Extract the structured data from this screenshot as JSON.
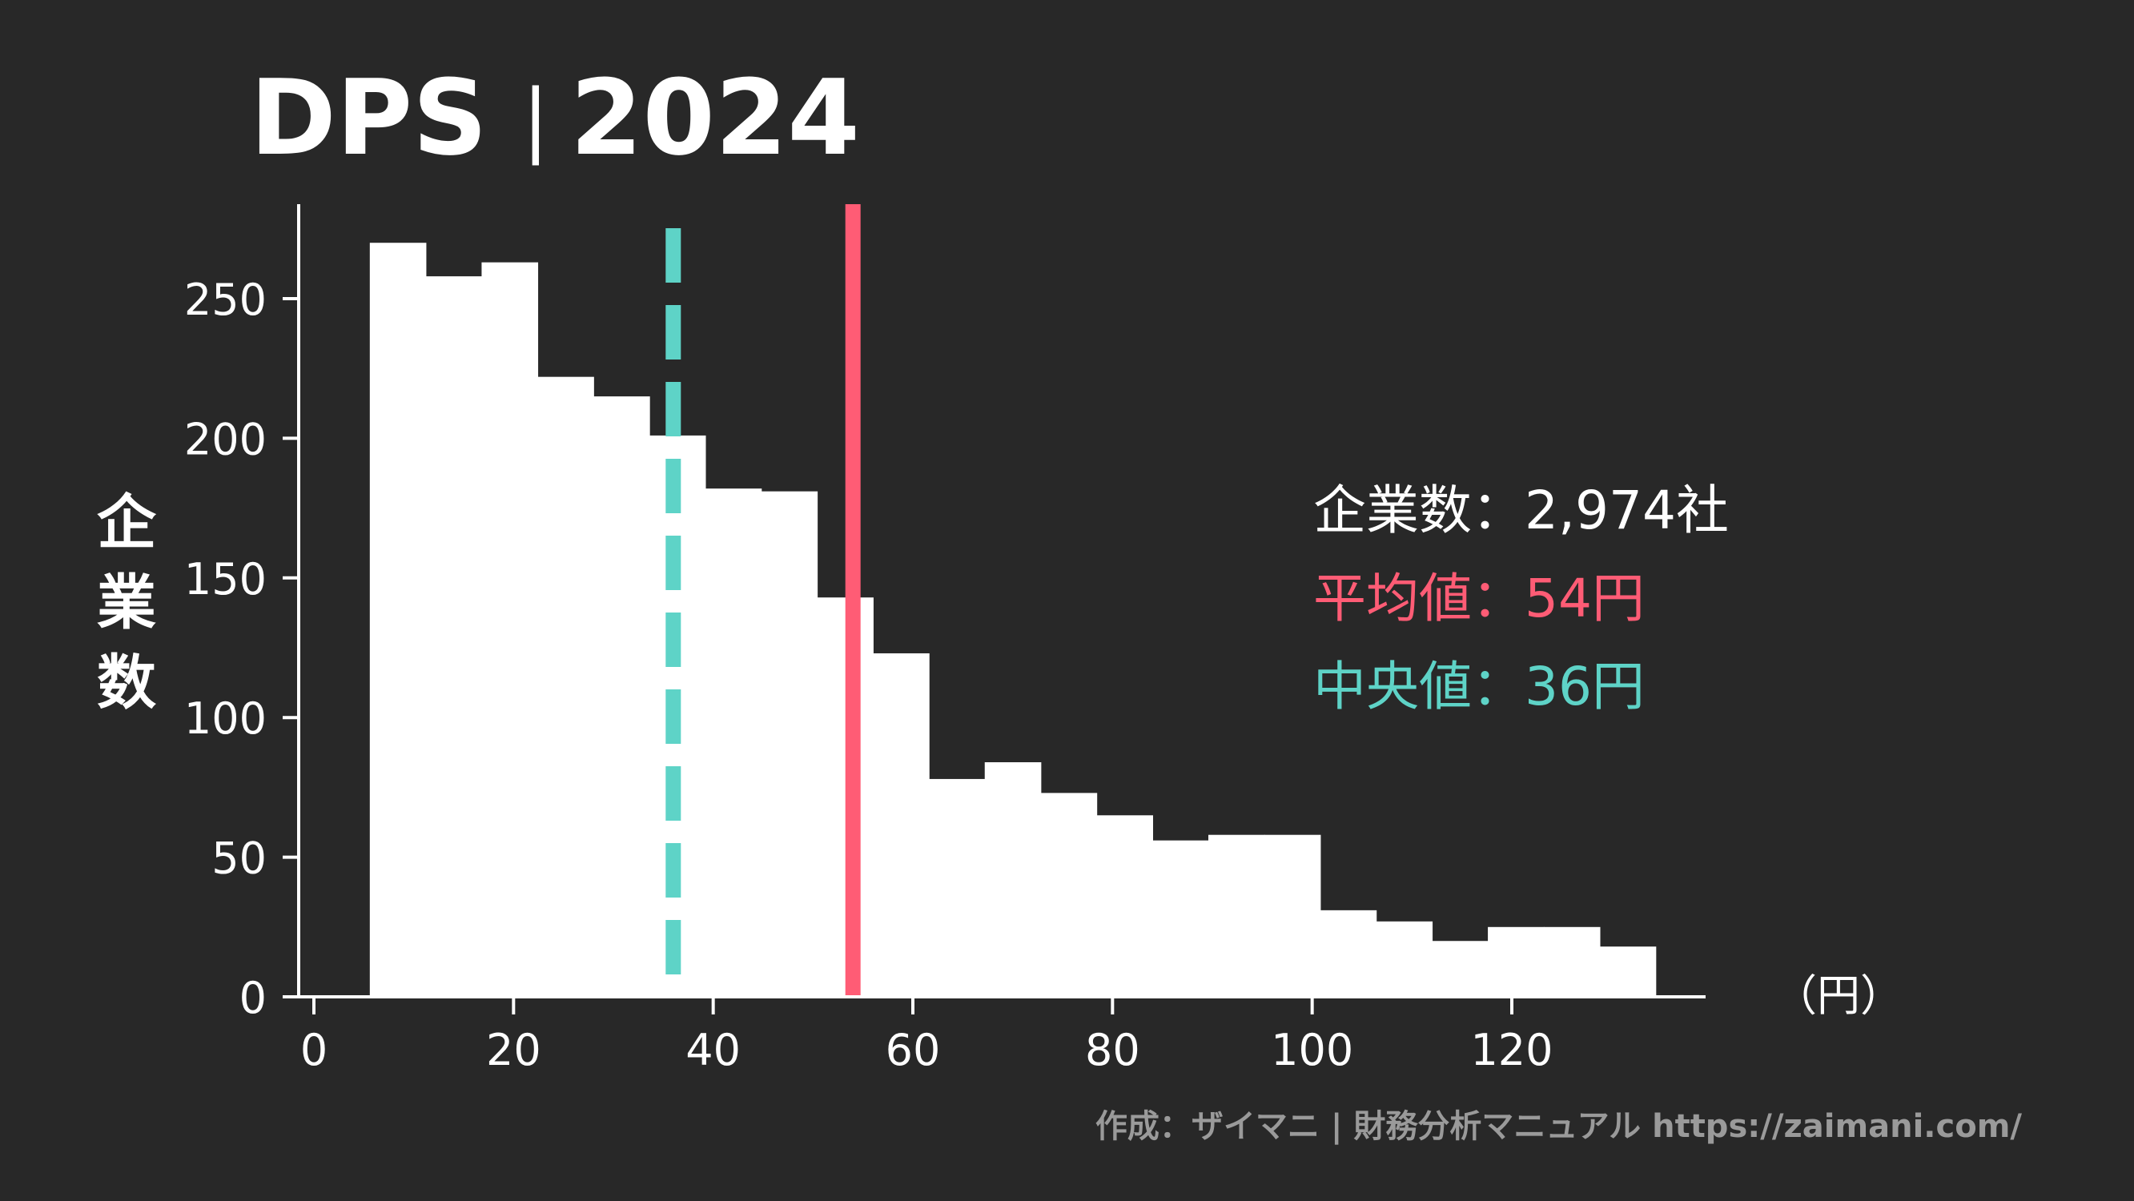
{
  "header": {
    "metric": "DPS",
    "separator": "|",
    "year": "2024"
  },
  "chart_data": {
    "type": "bar",
    "subtype": "histogram",
    "ylabel": "企業数",
    "xlabel": "（円）",
    "ylim": [
      0,
      285
    ],
    "xlim": [
      -2,
      140
    ],
    "y_ticks": [
      0,
      50,
      100,
      150,
      200,
      250
    ],
    "x_ticks": [
      0,
      20,
      40,
      60,
      80,
      100,
      120
    ],
    "bin_width": 5.6,
    "bins": [
      {
        "x0": 0.0,
        "x1": 5.6,
        "value": 0
      },
      {
        "x0": 5.6,
        "x1": 11.2,
        "value": 270
      },
      {
        "x0": 11.2,
        "x1": 16.8,
        "value": 258
      },
      {
        "x0": 16.8,
        "x1": 22.4,
        "value": 263
      },
      {
        "x0": 22.4,
        "x1": 28.0,
        "value": 222
      },
      {
        "x0": 28.0,
        "x1": 33.6,
        "value": 215
      },
      {
        "x0": 33.6,
        "x1": 39.2,
        "value": 201
      },
      {
        "x0": 39.2,
        "x1": 44.8,
        "value": 182
      },
      {
        "x0": 44.8,
        "x1": 50.4,
        "value": 181
      },
      {
        "x0": 50.4,
        "x1": 56.0,
        "value": 143
      },
      {
        "x0": 56.0,
        "x1": 61.6,
        "value": 123
      },
      {
        "x0": 61.6,
        "x1": 67.2,
        "value": 78
      },
      {
        "x0": 67.2,
        "x1": 72.8,
        "value": 84
      },
      {
        "x0": 72.8,
        "x1": 78.4,
        "value": 73
      },
      {
        "x0": 78.4,
        "x1": 84.0,
        "value": 65
      },
      {
        "x0": 84.0,
        "x1": 89.6,
        "value": 56
      },
      {
        "x0": 89.6,
        "x1": 95.2,
        "value": 58
      },
      {
        "x0": 95.2,
        "x1": 100.8,
        "value": 58
      },
      {
        "x0": 100.8,
        "x1": 106.4,
        "value": 31
      },
      {
        "x0": 106.4,
        "x1": 112.0,
        "value": 27
      },
      {
        "x0": 112.0,
        "x1": 117.6,
        "value": 20
      },
      {
        "x0": 117.6,
        "x1": 123.2,
        "value": 25
      },
      {
        "x0": 123.2,
        "x1": 128.8,
        "value": 25
      },
      {
        "x0": 128.8,
        "x1": 134.4,
        "value": 18
      }
    ],
    "reference_lines": [
      {
        "label": "平均値",
        "value": 54,
        "color": "#FF5C75",
        "style": "solid"
      },
      {
        "label": "中央値",
        "value": 36,
        "color": "#5ED3C7",
        "style": "dashed"
      }
    ],
    "bar_color": "#FFFFFF",
    "grid": false
  },
  "stats": {
    "count_label": "企業数",
    "count_value": "2,974社",
    "mean_label": "平均値",
    "mean_value": "54円",
    "median_label": "中央値",
    "median_value": "36円",
    "separator": "："
  },
  "footer": {
    "credit": "作成：ザイマニ | 財務分析マニュアル https://zaimani.com/"
  },
  "colors": {
    "background": "#282828",
    "text": "#FFFFFF",
    "mean": "#FF5C75",
    "median": "#5ED3C7",
    "footer": "#9A9A9A"
  }
}
